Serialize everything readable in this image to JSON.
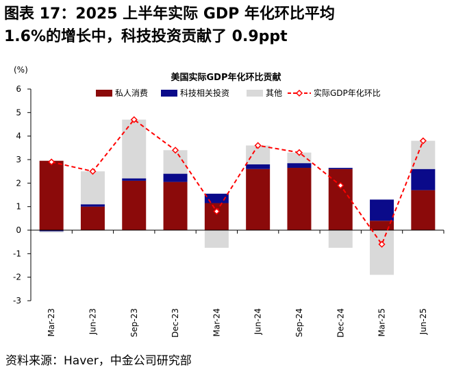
{
  "figure": {
    "title_line1": "图表 17：2025 上半年实际 GDP 年化环比平均",
    "title_line2": "1.6%的增长中，科技投资贡献了 0.9ppt",
    "source": "资料来源：Haver，中金公司研究部"
  },
  "colors": {
    "consumption": "#8b0a0a",
    "tech": "#0a0a8a",
    "other": "#d9d9d9",
    "gdp_line": "#ff0000",
    "axis": "#000000"
  },
  "chart_data": {
    "type": "bar",
    "stacked": true,
    "title": "美国实际GDP年化环比贡献",
    "unit_label": "(%)",
    "categories": [
      "Mar-23",
      "Jun-23",
      "Sep-23",
      "Dec-23",
      "Mar-24",
      "Jun-24",
      "Sep-24",
      "Dec-24",
      "Mar-25",
      "Jun-25"
    ],
    "ylim": [
      -3,
      6
    ],
    "yticks": [
      -3,
      -2,
      -1,
      0,
      1,
      2,
      3,
      4,
      5,
      6
    ],
    "legend_position": "top",
    "series": [
      {
        "name": "私人消费",
        "key": "consumption",
        "kind": "bar",
        "values": [
          2.95,
          1.0,
          2.1,
          2.05,
          1.15,
          2.6,
          2.65,
          2.6,
          0.4,
          1.7
        ]
      },
      {
        "name": "科技相关投资",
        "key": "tech",
        "kind": "bar",
        "values": [
          -0.05,
          0.1,
          0.1,
          0.35,
          0.4,
          0.2,
          0.2,
          0.05,
          0.9,
          0.9
        ]
      },
      {
        "name": "其他",
        "key": "other",
        "kind": "bar",
        "values": [
          -0.05,
          1.4,
          2.5,
          1.0,
          -0.75,
          0.8,
          0.45,
          -0.75,
          -1.9,
          1.2
        ]
      },
      {
        "name": "实际GDP年化环比",
        "key": "gdp",
        "kind": "line",
        "values": [
          2.9,
          2.5,
          4.7,
          3.4,
          0.8,
          3.6,
          3.3,
          1.9,
          -0.6,
          3.8
        ]
      }
    ]
  }
}
